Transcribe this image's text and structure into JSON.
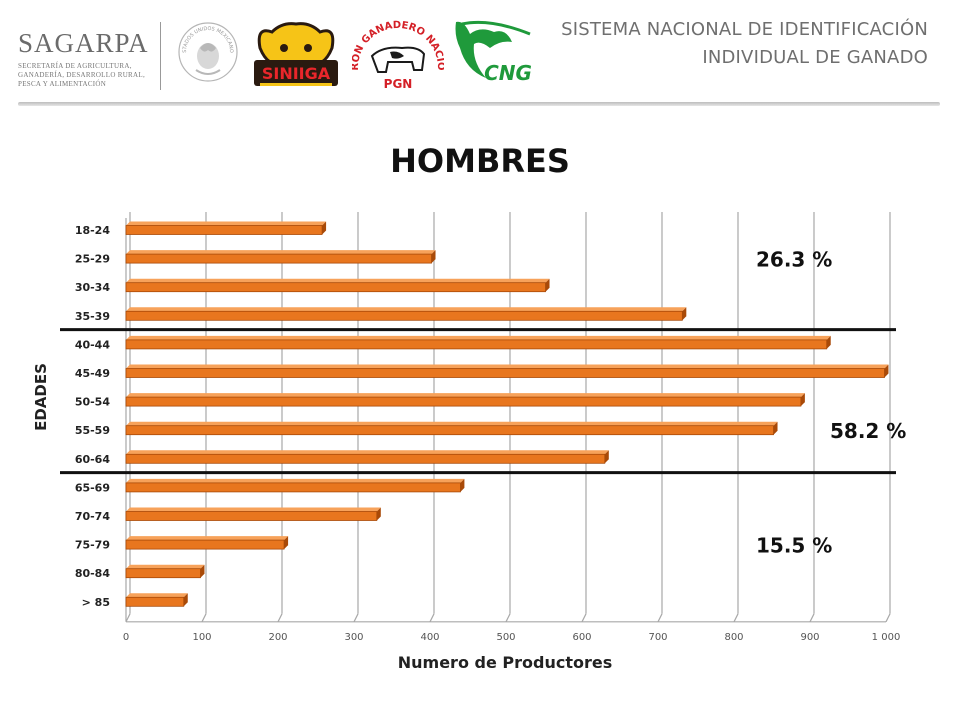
{
  "header": {
    "agency_name": "SAGARPA",
    "agency_subtitle": [
      "SECRETARÍA DE AGRICULTURA,",
      "GANADERÍA, DESARROLLO RURAL,",
      "PESCA Y ALIMENTACIÓN"
    ],
    "system_title_line1": "SISTEMA NACIONAL DE IDENTIFICACIÓN",
    "system_title_line2": "INDIVIDUAL DE GANADO",
    "logos": {
      "seal_text": "ESTADOS UNIDOS MEXICANOS",
      "siniiga": "SINIIGA",
      "pgn_arc": "PADRÓN GANADERO NACIONAL",
      "pgn": "PGN",
      "cng": "CNG"
    }
  },
  "colors": {
    "bar": "#e8761e",
    "bar_dark": "#a94a08",
    "bar_light": "#f7a25a",
    "grid": "#a8a8a8",
    "text": "#6f6f6f"
  },
  "chart_data": {
    "type": "bar",
    "orientation": "horizontal",
    "title": "HOMBRES",
    "xlabel": "Numero de Productores",
    "ylabel": "EDADES",
    "categories": [
      "18-24",
      "25-29",
      "30-34",
      "35-39",
      "40-44",
      "45-49",
      "50-54",
      "55-59",
      "60-64",
      "65-69",
      "70-74",
      "75-79",
      "80-84",
      "> 85"
    ],
    "values": [
      258,
      402,
      552,
      732,
      922,
      998,
      888,
      852,
      630,
      440,
      330,
      208,
      98,
      76
    ],
    "xlim": [
      0,
      1000
    ],
    "xticks": [
      0,
      100,
      200,
      300,
      400,
      500,
      600,
      700,
      800,
      900,
      1000
    ],
    "xtick_labels": [
      "0",
      "100",
      "200",
      "300",
      "400",
      "500",
      "600",
      "700",
      "800",
      "900",
      "1 000"
    ],
    "grid": "vertical",
    "annotations": [
      {
        "text": "26.3 %",
        "after_category": "25-29"
      },
      {
        "text": "58.2 %",
        "after_category": "55-59"
      },
      {
        "text": "15.5 %",
        "after_category": "75-79"
      }
    ],
    "separators_after": [
      "35-39",
      "60-64"
    ]
  }
}
